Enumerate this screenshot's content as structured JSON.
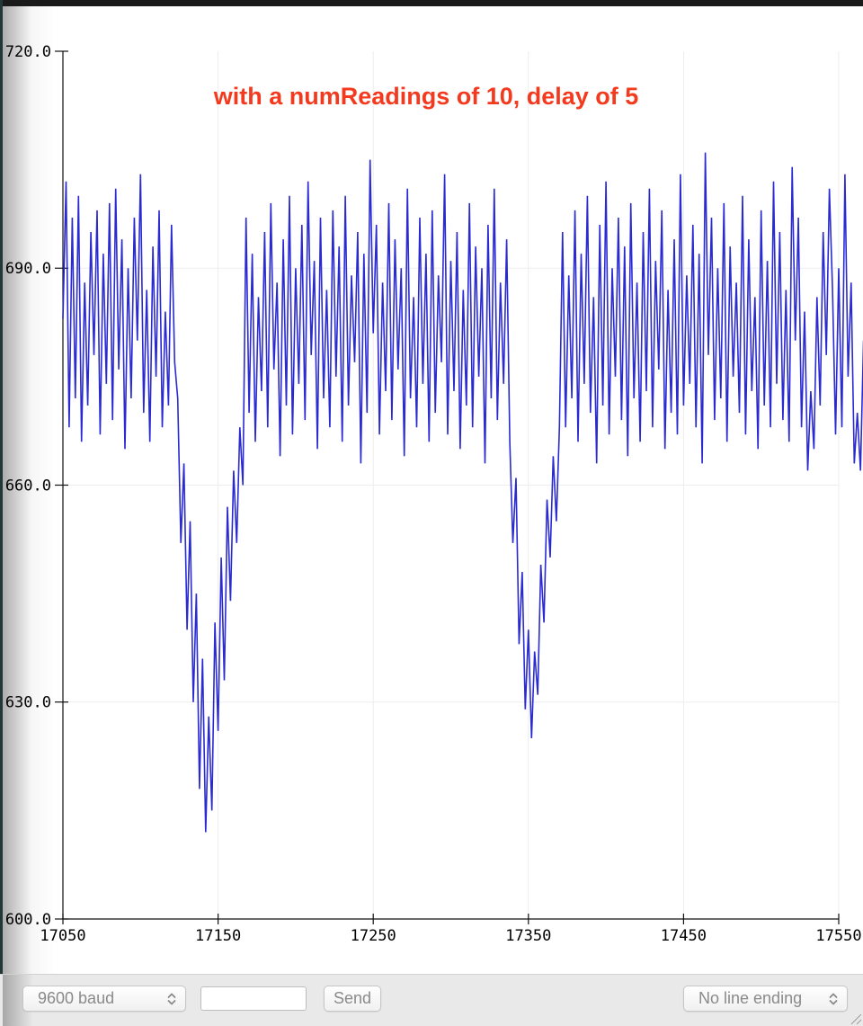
{
  "chart_data": {
    "type": "line",
    "title": "with a numReadings of 10, delay of 5",
    "title_color": "#f43a1e",
    "line_color": "#2a2ad2",
    "grid_color": "#ededed",
    "axis_color": "#111111",
    "x_min": 17050,
    "x_max": 17550,
    "y_min": 600.0,
    "y_max": 720.0,
    "x_ticks": [
      {
        "v": 17050,
        "label": "17050"
      },
      {
        "v": 17150,
        "label": "17150"
      },
      {
        "v": 17250,
        "label": "17250"
      },
      {
        "v": 17350,
        "label": "17350"
      },
      {
        "v": 17450,
        "label": "17450"
      },
      {
        "v": 17550,
        "label": "17550"
      }
    ],
    "y_ticks": [
      {
        "v": 720,
        "label": "720.0"
      },
      {
        "v": 690,
        "label": "690.0"
      },
      {
        "v": 660,
        "label": "660.0"
      },
      {
        "v": 630,
        "label": "630.0"
      },
      {
        "v": 600,
        "label": "600.0"
      }
    ],
    "x_start": 17050,
    "x_step": 2,
    "values": [
      683,
      702,
      668,
      697,
      672,
      700,
      666,
      688,
      671,
      695,
      678,
      698,
      667,
      692,
      674,
      699,
      669,
      701,
      676,
      694,
      665,
      690,
      672,
      697,
      680,
      703,
      670,
      687,
      666,
      693,
      675,
      698,
      668,
      684,
      671,
      696,
      677,
      672,
      652,
      663,
      640,
      655,
      630,
      645,
      618,
      636,
      612,
      628,
      615,
      641,
      626,
      650,
      633,
      657,
      644,
      662,
      652,
      668,
      660,
      697,
      670,
      692,
      666,
      686,
      673,
      695,
      668,
      699,
      676,
      688,
      664,
      694,
      671,
      700,
      667,
      690,
      674,
      696,
      669,
      702,
      678,
      691,
      665,
      697,
      672,
      687,
      668,
      698,
      675,
      693,
      666,
      700,
      671,
      689,
      677,
      695,
      663,
      692,
      670,
      705,
      681,
      696,
      667,
      688,
      673,
      699,
      669,
      694,
      676,
      690,
      664,
      701,
      672,
      686,
      668,
      697,
      674,
      692,
      666,
      698,
      670,
      689,
      677,
      703,
      667,
      691,
      673,
      695,
      665,
      687,
      671,
      699,
      668,
      693,
      675,
      690,
      663,
      696,
      672,
      701,
      669,
      688,
      674,
      694,
      666,
      652,
      661,
      638,
      648,
      629,
      640,
      625,
      637,
      631,
      649,
      641,
      658,
      650,
      664,
      655,
      668,
      695,
      668,
      689,
      672,
      698,
      666,
      692,
      674,
      700,
      670,
      686,
      663,
      696,
      671,
      702,
      667,
      690,
      675,
      697,
      669,
      693,
      664,
      699,
      672,
      688,
      666,
      695,
      673,
      701,
      668,
      691,
      676,
      698,
      665,
      687,
      670,
      694,
      667,
      703,
      671,
      689,
      674,
      696,
      668,
      692,
      663,
      706,
      678,
      697,
      669,
      690,
      672,
      699,
      666,
      693,
      675,
      688,
      670,
      700,
      667,
      694,
      673,
      686,
      665,
      698,
      671,
      691,
      668,
      702,
      674,
      695,
      669,
      687,
      666,
      704,
      680,
      697,
      668,
      684,
      662,
      673,
      665,
      686,
      671,
      695,
      678,
      701,
      687,
      667,
      690,
      668,
      703,
      675,
      688,
      663,
      670,
      662,
      680,
      672,
      690
    ]
  },
  "toolbar": {
    "baud_selector": {
      "value": "9600 baud"
    },
    "message_input": {
      "value": "",
      "placeholder": ""
    },
    "send_button_label": "Send",
    "line_ending_selector": {
      "value": "No line ending"
    }
  }
}
